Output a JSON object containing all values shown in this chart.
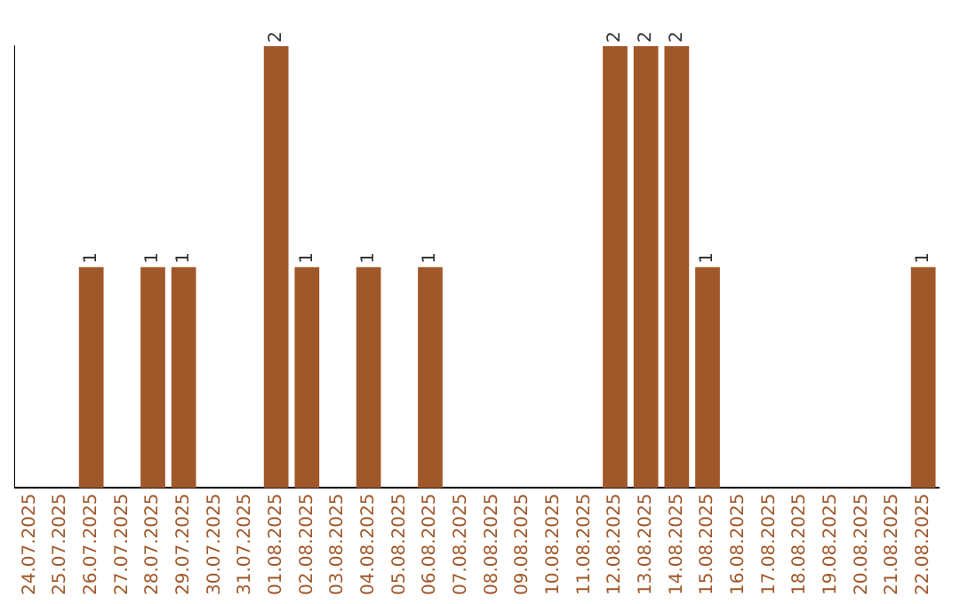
{
  "chart_data": {
    "type": "bar",
    "categories": [
      "24.07.2025",
      "25.07.2025",
      "26.07.2025",
      "27.07.2025",
      "28.07.2025",
      "29.07.2025",
      "30.07.2025",
      "31.07.2025",
      "01.08.2025",
      "02.08.2025",
      "03.08.2025",
      "04.08.2025",
      "05.08.2025",
      "06.08.2025",
      "07.08.2025",
      "08.08.2025",
      "09.08.2025",
      "10.08.2025",
      "11.08.2025",
      "12.08.2025",
      "13.08.2025",
      "14.08.2025",
      "15.08.2025",
      "16.08.2025",
      "17.08.2025",
      "18.08.2025",
      "19.08.2025",
      "20.08.2025",
      "21.08.2025",
      "22.08.2025"
    ],
    "values": [
      0,
      0,
      1,
      0,
      1,
      1,
      0,
      0,
      2,
      1,
      0,
      1,
      0,
      1,
      0,
      0,
      0,
      0,
      0,
      2,
      2,
      2,
      1,
      0,
      0,
      0,
      0,
      0,
      0,
      1
    ],
    "value_labels": [
      null,
      null,
      "1",
      null,
      "1",
      "1",
      null,
      null,
      "2",
      "1",
      null,
      "1",
      null,
      "1",
      null,
      null,
      null,
      null,
      null,
      "2",
      "2",
      "2",
      "1",
      null,
      null,
      null,
      null,
      null,
      null,
      "1"
    ],
    "color": "#a0582a",
    "ylim": [
      0,
      2
    ],
    "tick_labels": "x",
    "grid": false,
    "legend": false
  }
}
